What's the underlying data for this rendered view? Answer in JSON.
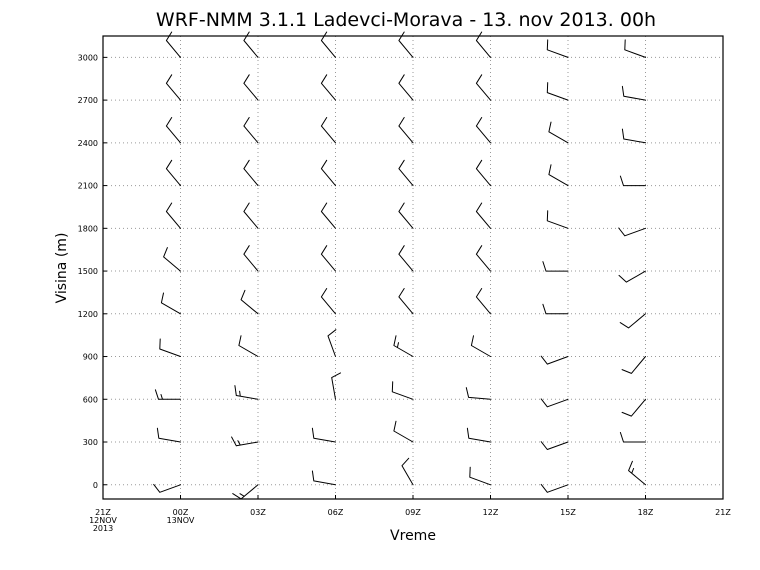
{
  "chart_data": {
    "type": "wind-barb",
    "title": "WRF-NMM 3.1.1 Ladevci-Morava  -  13. nov 2013. 00h",
    "xlabel": "Vreme",
    "ylabel": "Visina (m)",
    "x_ticks": [
      {
        "label": "21Z",
        "sub": [
          "12NOV",
          "2013"
        ]
      },
      {
        "label": "00Z",
        "sub": [
          "13NOV"
        ]
      },
      {
        "label": "03Z",
        "sub": []
      },
      {
        "label": "06Z",
        "sub": []
      },
      {
        "label": "09Z",
        "sub": []
      },
      {
        "label": "12Z",
        "sub": []
      },
      {
        "label": "15Z",
        "sub": []
      },
      {
        "label": "18Z",
        "sub": []
      },
      {
        "label": "21Z",
        "sub": []
      }
    ],
    "ylim": [
      -100,
      3150
    ],
    "y_ticks": [
      0,
      300,
      600,
      900,
      1200,
      1500,
      1800,
      2100,
      2400,
      2700,
      3000
    ],
    "grid": true,
    "barb_times": [
      1,
      2,
      3,
      4,
      5,
      6,
      7
    ],
    "barb_levels": [
      0,
      300,
      600,
      900,
      1200,
      1500,
      1800,
      2100,
      2400,
      2700,
      3000
    ],
    "barbs": [
      [
        [
          250,
          10
        ],
        [
          280,
          10
        ],
        [
          270,
          15
        ],
        [
          290,
          10
        ],
        [
          300,
          10
        ],
        [
          310,
          10
        ],
        [
          320,
          10
        ],
        [
          320,
          10
        ],
        [
          320,
          10
        ],
        [
          320,
          10
        ],
        [
          320,
          10
        ]
      ],
      [
        [
          230,
          15
        ],
        [
          260,
          15
        ],
        [
          280,
          15
        ],
        [
          300,
          10
        ],
        [
          310,
          10
        ],
        [
          320,
          10
        ],
        [
          320,
          10
        ],
        [
          320,
          10
        ],
        [
          320,
          10
        ],
        [
          320,
          10
        ],
        [
          320,
          10
        ]
      ],
      [
        [
          280,
          10
        ],
        [
          280,
          10
        ],
        [
          350,
          10
        ],
        [
          340,
          10
        ],
        [
          320,
          10
        ],
        [
          320,
          10
        ],
        [
          320,
          10
        ],
        [
          320,
          10
        ],
        [
          320,
          10
        ],
        [
          320,
          10
        ],
        [
          320,
          10
        ]
      ],
      [
        [
          330,
          10
        ],
        [
          300,
          10
        ],
        [
          290,
          10
        ],
        [
          300,
          15
        ],
        [
          320,
          10
        ],
        [
          320,
          10
        ],
        [
          320,
          10
        ],
        [
          320,
          10
        ],
        [
          320,
          10
        ],
        [
          320,
          10
        ],
        [
          320,
          10
        ]
      ],
      [
        [
          290,
          10
        ],
        [
          280,
          10
        ],
        [
          275,
          10
        ],
        [
          300,
          10
        ],
        [
          320,
          10
        ],
        [
          320,
          10
        ],
        [
          320,
          10
        ],
        [
          320,
          10
        ],
        [
          320,
          10
        ],
        [
          320,
          10
        ],
        [
          320,
          10
        ]
      ],
      [
        [
          250,
          10
        ],
        [
          250,
          10
        ],
        [
          250,
          10
        ],
        [
          250,
          10
        ],
        [
          270,
          10
        ],
        [
          270,
          10
        ],
        [
          290,
          10
        ],
        [
          300,
          10
        ],
        [
          300,
          10
        ],
        [
          290,
          10
        ],
        [
          290,
          10
        ]
      ],
      [
        [
          310,
          15
        ],
        [
          270,
          10
        ],
        [
          220,
          10
        ],
        [
          220,
          10
        ],
        [
          230,
          10
        ],
        [
          240,
          10
        ],
        [
          250,
          10
        ],
        [
          270,
          10
        ],
        [
          280,
          10
        ],
        [
          280,
          10
        ],
        [
          290,
          10
        ]
      ]
    ]
  }
}
